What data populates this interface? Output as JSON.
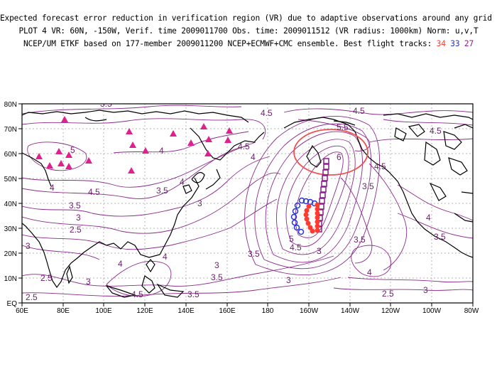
{
  "title": {
    "line1": "Expected forecast error reduction in verification region (VR) due to adaptive observations around any grid point.",
    "line2": "PLOT 4 VR: 60N, -150W, Verif. time 2009011700 Obs. time: 2009011512 (VR radius: 1000km) Norm: u,v,T",
    "line3_prefix": "NCEP/UM ETKF based on 177-member 2009011200 NCEP+ECMWF+CMC ensemble. Best flight tracks:",
    "tracks": [
      {
        "label": "34",
        "color": "#ff3b30"
      },
      {
        "label": "33",
        "color": "#2233dd"
      },
      {
        "label": "27",
        "color": "#8b1a8b"
      }
    ]
  },
  "axes": {
    "x_ticks": [
      "60E",
      "80E",
      "100E",
      "120E",
      "140E",
      "160E",
      "180",
      "160W",
      "140W",
      "120W",
      "100W",
      "80W"
    ],
    "y_ticks": [
      "EQ",
      "10N",
      "20N",
      "30N",
      "40N",
      "50N",
      "60N",
      "70N",
      "80N"
    ]
  },
  "contour_labels": [
    "4.5",
    "4.5",
    "5.5",
    "4.5",
    "5",
    "4",
    "4",
    "6",
    "4.5",
    "4.5",
    "4",
    "4",
    "4.5",
    "3.5",
    "3.5",
    "3.5",
    "3",
    "3",
    "2.5",
    "5",
    "4.5",
    "3",
    "3.5",
    "3.5",
    "3.5",
    "4",
    "3",
    "4",
    "3",
    "4",
    "2.5",
    "3.5",
    "3",
    "3",
    "2.5",
    "3.5",
    "4.5",
    "2.5",
    "3",
    "3.5",
    "4"
  ],
  "colors": {
    "contour": "#8b2a8b",
    "coast": "#000000",
    "triangle": "#e0208f",
    "vr_circle": "#f05050"
  }
}
